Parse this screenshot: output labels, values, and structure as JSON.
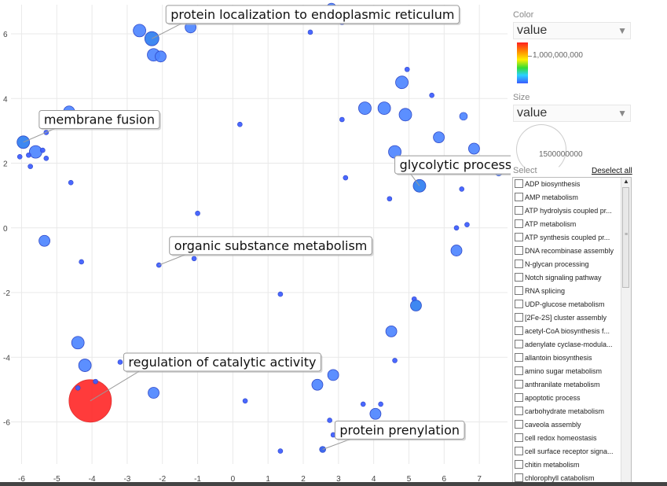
{
  "chart_data": {
    "type": "scatter",
    "xlim": [
      -6.3,
      7.8
    ],
    "ylim": [
      -7.3,
      6.9
    ],
    "x_ticks": [
      -6,
      -5,
      -4,
      -3,
      -2,
      -1,
      0,
      1,
      2,
      3,
      4,
      5,
      6,
      7
    ],
    "y_ticks": [
      -6,
      -4,
      -2,
      0,
      2,
      4,
      6
    ],
    "tick_labels_x": [
      "-6",
      "-5",
      "-4",
      "-3",
      "-2",
      "-1",
      "0",
      "1",
      "2",
      "3",
      "4",
      "5",
      "6",
      "7"
    ],
    "tick_labels_y": [
      "-6",
      "-4",
      "-2",
      "0",
      "2",
      "4",
      "6"
    ],
    "grid": true,
    "points": [
      {
        "x": -4.05,
        "y": -5.35,
        "size": 27,
        "color": "#ff2a2a"
      },
      {
        "x": -4.4,
        "y": -4.95,
        "size": 3,
        "color": "#3b5bff"
      },
      {
        "x": -3.9,
        "y": -4.75,
        "size": 3,
        "color": "#3b5bff"
      },
      {
        "x": -4.2,
        "y": -4.25,
        "size": 8,
        "color": "#4e86ff"
      },
      {
        "x": -4.4,
        "y": -3.55,
        "size": 8,
        "color": "#4e86ff"
      },
      {
        "x": -3.2,
        "y": -4.15,
        "size": 3,
        "color": "#3b5bff"
      },
      {
        "x": -2.25,
        "y": -5.1,
        "size": 7,
        "color": "#4e86ff"
      },
      {
        "x": -2.65,
        "y": 6.1,
        "size": 8,
        "color": "#4e86ff"
      },
      {
        "x": -2.3,
        "y": 5.85,
        "size": 9,
        "color": "#2f7ef0"
      },
      {
        "x": -2.25,
        "y": 5.35,
        "size": 8,
        "color": "#4e86ff"
      },
      {
        "x": -2.05,
        "y": 5.3,
        "size": 7,
        "color": "#4e86ff"
      },
      {
        "x": -1.2,
        "y": 6.2,
        "size": 7,
        "color": "#4e86ff"
      },
      {
        "x": -4.65,
        "y": 3.6,
        "size": 7,
        "color": "#4e86ff"
      },
      {
        "x": -5.95,
        "y": 2.65,
        "size": 8,
        "color": "#2f7ef0"
      },
      {
        "x": -5.6,
        "y": 2.35,
        "size": 8,
        "color": "#4e86ff"
      },
      {
        "x": -5.4,
        "y": 2.4,
        "size": 3,
        "color": "#3b5bff"
      },
      {
        "x": -5.3,
        "y": 2.15,
        "size": 3,
        "color": "#3b5bff"
      },
      {
        "x": -5.8,
        "y": 2.25,
        "size": 3,
        "color": "#3b5bff"
      },
      {
        "x": -6.05,
        "y": 2.2,
        "size": 3,
        "color": "#3b5bff"
      },
      {
        "x": -5.75,
        "y": 1.9,
        "size": 3,
        "color": "#3b5bff"
      },
      {
        "x": -5.3,
        "y": 2.95,
        "size": 3,
        "color": "#3b5bff"
      },
      {
        "x": -4.6,
        "y": 1.4,
        "size": 3,
        "color": "#3b5bff"
      },
      {
        "x": -5.35,
        "y": -0.4,
        "size": 7,
        "color": "#4e86ff"
      },
      {
        "x": -4.3,
        "y": -1.05,
        "size": 3,
        "color": "#3b5bff"
      },
      {
        "x": -1.0,
        "y": 0.45,
        "size": 3,
        "color": "#3b5bff"
      },
      {
        "x": -2.1,
        "y": -1.15,
        "size": 3,
        "color": "#3b5bff"
      },
      {
        "x": -1.1,
        "y": -0.95,
        "size": 3,
        "color": "#3b5bff"
      },
      {
        "x": 0.2,
        "y": 3.2,
        "size": 3,
        "color": "#3b5bff"
      },
      {
        "x": 1.35,
        "y": -2.05,
        "size": 3,
        "color": "#3b5bff"
      },
      {
        "x": 0.35,
        "y": -5.35,
        "size": 3,
        "color": "#3b5bff"
      },
      {
        "x": 1.35,
        "y": -6.9,
        "size": 3,
        "color": "#3b5bff"
      },
      {
        "x": 2.2,
        "y": 6.05,
        "size": 3,
        "color": "#3b5bff"
      },
      {
        "x": 2.8,
        "y": 6.8,
        "size": 6,
        "color": "#4e86ff"
      },
      {
        "x": 3.1,
        "y": 6.35,
        "size": 3,
        "color": "#3b5bff"
      },
      {
        "x": 3.1,
        "y": 3.35,
        "size": 3,
        "color": "#3b5bff"
      },
      {
        "x": 3.2,
        "y": 1.55,
        "size": 3,
        "color": "#3b5bff"
      },
      {
        "x": 3.75,
        "y": 3.7,
        "size": 8,
        "color": "#4e86ff"
      },
      {
        "x": 4.3,
        "y": 3.7,
        "size": 8,
        "color": "#4e86ff"
      },
      {
        "x": 4.8,
        "y": 4.5,
        "size": 8,
        "color": "#4e86ff"
      },
      {
        "x": 4.95,
        "y": 4.9,
        "size": 3,
        "color": "#3b5bff"
      },
      {
        "x": 4.9,
        "y": 3.5,
        "size": 8,
        "color": "#4e86ff"
      },
      {
        "x": 4.6,
        "y": 2.35,
        "size": 8,
        "color": "#4e86ff"
      },
      {
        "x": 4.45,
        "y": 0.9,
        "size": 3,
        "color": "#3b5bff"
      },
      {
        "x": 5.3,
        "y": 1.3,
        "size": 8,
        "color": "#2f7ef0"
      },
      {
        "x": 5.65,
        "y": 4.1,
        "size": 3,
        "color": "#3b5bff"
      },
      {
        "x": 5.85,
        "y": 2.8,
        "size": 7,
        "color": "#4e86ff"
      },
      {
        "x": 6.55,
        "y": 3.45,
        "size": 5,
        "color": "#4e86ff"
      },
      {
        "x": 6.85,
        "y": 2.45,
        "size": 7,
        "color": "#4e86ff"
      },
      {
        "x": 7.55,
        "y": 1.7,
        "size": 4,
        "color": "#4e86ff"
      },
      {
        "x": 6.5,
        "y": 1.2,
        "size": 3,
        "color": "#3b5bff"
      },
      {
        "x": 6.35,
        "y": 0.0,
        "size": 3,
        "color": "#3b5bff"
      },
      {
        "x": 6.65,
        "y": 0.1,
        "size": 3,
        "color": "#3b5bff"
      },
      {
        "x": 6.35,
        "y": -0.7,
        "size": 7,
        "color": "#4e86ff"
      },
      {
        "x": 5.15,
        "y": -2.2,
        "size": 3,
        "color": "#3b5bff"
      },
      {
        "x": 5.2,
        "y": -2.4,
        "size": 7,
        "color": "#2f7ef0"
      },
      {
        "x": 4.5,
        "y": -3.2,
        "size": 7,
        "color": "#4e86ff"
      },
      {
        "x": 4.6,
        "y": -4.1,
        "size": 3,
        "color": "#3b5bff"
      },
      {
        "x": 2.85,
        "y": -4.55,
        "size": 7,
        "color": "#4e86ff"
      },
      {
        "x": 2.4,
        "y": -4.85,
        "size": 7,
        "color": "#4e86ff"
      },
      {
        "x": 3.7,
        "y": -5.45,
        "size": 3,
        "color": "#3b5bff"
      },
      {
        "x": 4.05,
        "y": -5.75,
        "size": 7,
        "color": "#4e86ff"
      },
      {
        "x": 4.2,
        "y": -5.45,
        "size": 3,
        "color": "#3b5bff"
      },
      {
        "x": 2.75,
        "y": -5.95,
        "size": 3,
        "color": "#3b5bff"
      },
      {
        "x": 2.85,
        "y": -6.4,
        "size": 3,
        "color": "#3b5bff"
      },
      {
        "x": 2.55,
        "y": -6.85,
        "size": 4,
        "color": "#2f5bea"
      }
    ],
    "annotations": [
      {
        "text": "protein localization to endoplasmic reticulum",
        "point": [
          -2.3,
          5.85
        ],
        "box_x": -1.9,
        "box_y": 6.6
      },
      {
        "text": "membrane fusion",
        "point": [
          -5.95,
          2.65
        ],
        "box_x": -5.5,
        "box_y": 3.35
      },
      {
        "text": "glycolytic process",
        "point": [
          5.3,
          1.3
        ],
        "box_x": 4.6,
        "box_y": 1.95
      },
      {
        "text": "organic substance metabolism",
        "point": [
          -2.1,
          -1.15
        ],
        "box_x": -1.8,
        "box_y": -0.55
      },
      {
        "text": "regulation of catalytic activity",
        "point": [
          -4.05,
          -5.35
        ],
        "box_x": -3.1,
        "box_y": -4.15
      },
      {
        "text": "protein prenylation",
        "point": [
          2.55,
          -6.85
        ],
        "box_x": 2.9,
        "box_y": -6.25
      }
    ]
  },
  "panel": {
    "color_title": "Color",
    "color_select": "value",
    "color_scale_label": "1,000,000,000",
    "size_title": "Size",
    "size_select": "value",
    "size_scale_label": "1500000000",
    "select_title": "Select",
    "deselect_all": "Deselect all",
    "items": [
      "ADP biosynthesis",
      "AMP metabolism",
      "ATP hydrolysis coupled pr...",
      "ATP metabolism",
      "ATP synthesis coupled pr...",
      "DNA recombinase assembly",
      "N-glycan processing",
      "Notch signaling pathway",
      "RNA splicing",
      "UDP-glucose metabolism",
      "[2Fe-2S] cluster assembly",
      "acetyl-CoA biosynthesis f...",
      "adenylate cyclase-modula...",
      "allantoin biosynthesis",
      "amino sugar metabolism",
      "anthranilate metabolism",
      "apoptotic process",
      "carbohydrate metabolism",
      "caveola assembly",
      "cell redox homeostasis",
      "cell surface receptor signa...",
      "chitin metabolism",
      "chlorophyll catabolism"
    ]
  }
}
